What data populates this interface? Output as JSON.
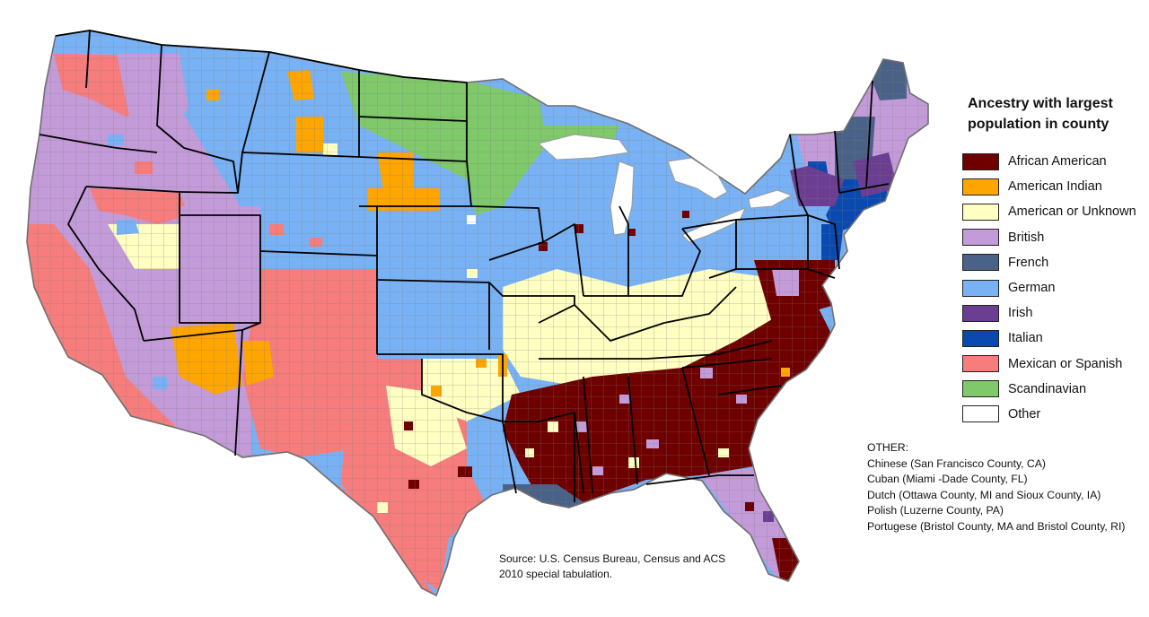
{
  "legend": {
    "title_line1": "Ancestry with largest",
    "title_line2": "population in county",
    "items": [
      {
        "label": "African American",
        "color": "#6e0000"
      },
      {
        "label": "American Indian",
        "color": "#ffa500"
      },
      {
        "label": "American or Unknown",
        "color": "#ffffc2"
      },
      {
        "label": "British",
        "color": "#c39bd9"
      },
      {
        "label": "French",
        "color": "#4a6287"
      },
      {
        "label": "German",
        "color": "#78b2f5"
      },
      {
        "label": "Irish",
        "color": "#6b3e91"
      },
      {
        "label": "Italian",
        "color": "#0a4ab0"
      },
      {
        "label": "Mexican or Spanish",
        "color": "#f77c7c"
      },
      {
        "label": "Scandinavian",
        "color": "#7fc96a"
      },
      {
        "label": "Other",
        "color": "#ffffff"
      }
    ]
  },
  "other": {
    "heading": "OTHER:",
    "lines": [
      "Chinese (San Francisco County, CA)",
      "Cuban (Miami -Dade County, FL)",
      "Dutch (Ottawa County, MI and Sioux County, IA)",
      "Polish (Luzerne County, PA)",
      "Portugese (Bristol County, MA and Bristol County, RI)"
    ]
  },
  "source": {
    "line1": "Source: U.S. Census Bureau, Census and ACS",
    "line2": "2010 special tabulation."
  },
  "colors": {
    "county_border": "#8a8a8a",
    "state_border": "#000000",
    "water_outline": "#9a9a9a"
  }
}
